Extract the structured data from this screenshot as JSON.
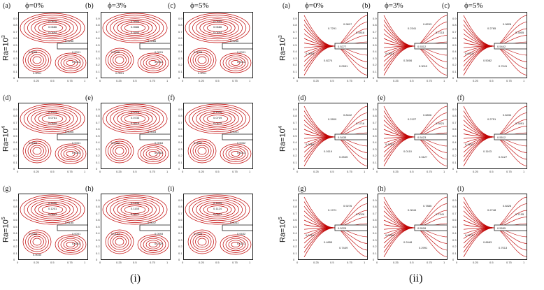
{
  "phi_headers": [
    "ϕ=0%",
    "ϕ=3%",
    "ϕ=5%"
  ],
  "ra_labels": [
    {
      "base": "Ra=10",
      "exp": "3"
    },
    {
      "base": "Ra=10",
      "exp": "4"
    },
    {
      "base": "Ra=10",
      "exp": "5"
    }
  ],
  "panel_letters": [
    "(a)",
    "(b)",
    "(c)",
    "(d)",
    "(e)",
    "(f)",
    "(g)",
    "(h)",
    "(i)"
  ],
  "axis_ticks": [
    "0",
    "0.25",
    "0.5",
    "0.75",
    "1"
  ],
  "y_ticks": [
    "0",
    "0.1",
    "0.2",
    "0.3",
    "0.4",
    "0.5",
    "0.6",
    "0.7",
    "0.8",
    "0.9"
  ],
  "captions": {
    "left": "(i)",
    "right": "(ii)"
  },
  "colors": {
    "contour": "#c00000",
    "frame": "#222222"
  },
  "streamline_labels": [
    [
      "0.0818",
      "0.0686",
      "0.0494",
      "0.0286",
      "0.0001",
      "0.0012",
      "0.0005",
      "0.0001"
    ],
    [
      "0.0889",
      "0.0686",
      "0.0494",
      "0.0286",
      "0.0001",
      "0.0011",
      "0.0005",
      "0.0001"
    ],
    [
      "0.0889",
      "0.0686",
      "0.0494",
      "0.0286",
      "0.0001",
      "0.0011",
      "0.0005",
      "0.0001"
    ],
    [
      "0.1014",
      "0.0761",
      "0.0559",
      "0.0005",
      "0.0061",
      "0.0023",
      "0.0009"
    ],
    [
      "0.1018",
      "0.0733",
      "0.0519",
      "0.0003",
      "0.0064",
      "0.0016",
      "0.0002"
    ],
    [
      "0.1026",
      "0.0709",
      "0.0475",
      "0.0001",
      "0.0062",
      "0.0014",
      "0.0037"
    ],
    [
      "0.1456",
      "0.1201",
      "0.0843",
      "0.0185",
      "0.0051",
      "0.0610",
      "0.0152",
      "0.0030"
    ],
    [
      "0.1438",
      "0.1155",
      "0.0871",
      "0.0047",
      "0.0593",
      "0.0129",
      "0.0101"
    ],
    [
      "0.1405",
      "0.1124",
      "0.0931",
      "0.0041",
      "0.0632",
      "0.0121",
      "0.0123"
    ]
  ],
  "isotherm_labels": [
    [
      "0.5277",
      "0.9817",
      "0.7291",
      "0.0551",
      "0.3093",
      "0.8274",
      "0.0818"
    ],
    [
      "0.5312",
      "0.8293",
      "0.2341",
      "0.3019",
      "0.0301",
      "0.3006",
      "0.7213"
    ],
    [
      "0.5442",
      "0.9828",
      "0.2765",
      "0.7041",
      "0.0019",
      "0.5082",
      "0.3005"
    ],
    [
      "0.5435",
      "0.8442",
      "0.2809",
      "0.2545",
      "0.3469",
      "0.0119",
      "0.1716"
    ],
    [
      "0.5423",
      "0.6806",
      "0.2127",
      "0.3127",
      "0.1203",
      "0.0110",
      "0.5521"
    ],
    [
      "0.5512",
      "0.8434",
      "0.2751",
      "0.3127",
      "0.1192",
      "0.1103",
      "0.3091"
    ],
    [
      "0.5225",
      "0.9276",
      "0.1721",
      "0.7449",
      "0.0101",
      "0.4855",
      "0.3026"
    ],
    [
      "0.5528",
      "0.7885",
      "0.3044",
      "0.2991",
      "0.0526",
      "0.2448",
      "0.7341"
    ],
    [
      "0.5555",
      "0.8426",
      "0.2748",
      "0.7013",
      "0.1175",
      "0.8683",
      "0.7105"
    ]
  ]
}
